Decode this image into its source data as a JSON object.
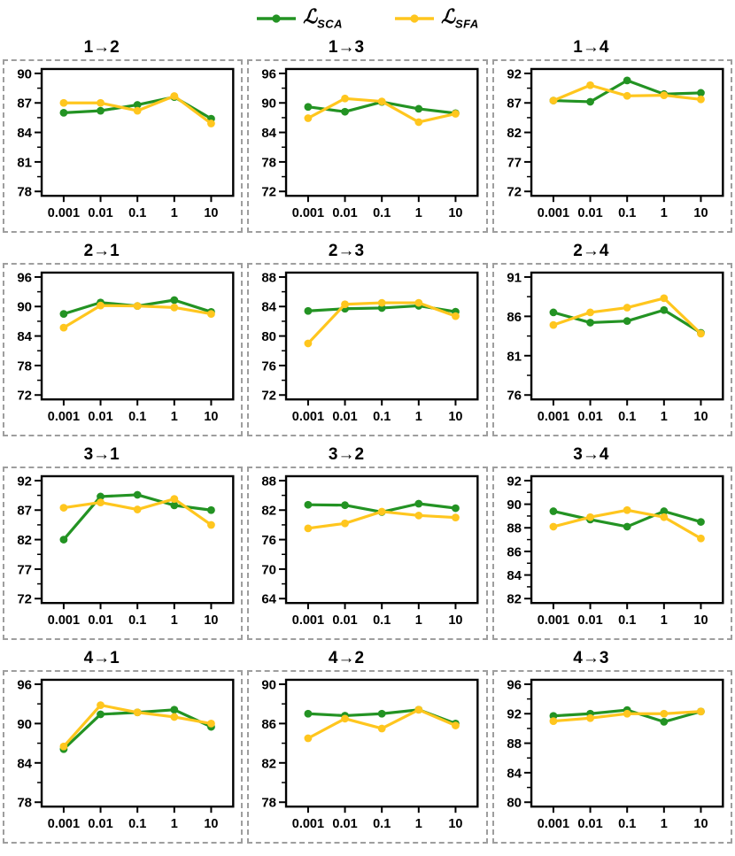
{
  "legend": {
    "series": [
      {
        "name": "L_SCA",
        "label": "ℒ",
        "subscript": "SCA",
        "color": "#239323"
      },
      {
        "name": "L_SFA",
        "label": "ℒ",
        "subscript": "SFA",
        "color": "#ffc61e"
      }
    ]
  },
  "chart_data": {
    "type": "line",
    "x_categories": [
      "0.001",
      "0.01",
      "0.1",
      "1",
      "10"
    ],
    "x_scale": "log",
    "grid": false,
    "legend_position": "top-center",
    "marker": "circle",
    "series_names": [
      "L_SCA",
      "L_SFA"
    ],
    "colors": {
      "L_SCA": "#239323",
      "L_SFA": "#ffc61e",
      "axis": "#000000",
      "panel_border": "#9e9e9e"
    },
    "charts": [
      {
        "title": "1→2",
        "yticks": [
          78,
          81,
          84,
          87,
          90
        ],
        "series": [
          {
            "name": "L_SCA",
            "values": [
              86.0,
              86.2,
              86.8,
              87.6,
              85.4
            ]
          },
          {
            "name": "L_SFA",
            "values": [
              87.0,
              87.0,
              86.2,
              87.7,
              84.9
            ]
          }
        ]
      },
      {
        "title": "1→3",
        "yticks": [
          72,
          78,
          84,
          90,
          96
        ],
        "series": [
          {
            "name": "L_SCA",
            "values": [
              89.2,
              88.2,
              90.2,
              88.8,
              87.9
            ]
          },
          {
            "name": "L_SFA",
            "values": [
              86.9,
              90.9,
              90.3,
              86.1,
              87.8
            ]
          }
        ]
      },
      {
        "title": "1→4",
        "yticks": [
          72,
          77,
          82,
          87,
          92
        ],
        "series": [
          {
            "name": "L_SCA",
            "values": [
              87.4,
              87.2,
              90.8,
              88.5,
              88.7
            ]
          },
          {
            "name": "L_SFA",
            "values": [
              87.4,
              90.0,
              88.2,
              88.3,
              87.6
            ]
          }
        ]
      },
      {
        "title": "2→1",
        "yticks": [
          72,
          78,
          84,
          90,
          96
        ],
        "series": [
          {
            "name": "L_SCA",
            "values": [
              88.5,
              90.8,
              90.1,
              91.3,
              88.9
            ]
          },
          {
            "name": "L_SFA",
            "values": [
              85.7,
              90.2,
              90.1,
              89.8,
              88.5
            ]
          }
        ]
      },
      {
        "title": "2→3",
        "yticks": [
          72,
          76,
          80,
          84,
          88
        ],
        "series": [
          {
            "name": "L_SCA",
            "values": [
              83.4,
              83.7,
              83.8,
              84.1,
              83.3
            ]
          },
          {
            "name": "L_SFA",
            "values": [
              79.0,
              84.3,
              84.5,
              84.5,
              82.7
            ]
          }
        ]
      },
      {
        "title": "2→4",
        "yticks": [
          76,
          81,
          86,
          91
        ],
        "series": [
          {
            "name": "L_SCA",
            "values": [
              86.5,
              85.2,
              85.4,
              86.8,
              83.9
            ]
          },
          {
            "name": "L_SFA",
            "values": [
              84.9,
              86.5,
              87.1,
              88.3,
              83.8
            ]
          }
        ]
      },
      {
        "title": "3→1",
        "yticks": [
          72,
          77,
          82,
          87,
          92
        ],
        "series": [
          {
            "name": "L_SCA",
            "values": [
              82.0,
              89.3,
              89.6,
              87.8,
              87.0
            ]
          },
          {
            "name": "L_SFA",
            "values": [
              87.4,
              88.3,
              87.1,
              88.9,
              84.5
            ]
          }
        ]
      },
      {
        "title": "3→2",
        "yticks": [
          64,
          70,
          76,
          82,
          88
        ],
        "series": [
          {
            "name": "L_SCA",
            "values": [
              83.1,
              83.0,
              81.6,
              83.3,
              82.4
            ]
          },
          {
            "name": "L_SFA",
            "values": [
              78.3,
              79.3,
              81.7,
              80.9,
              80.5
            ]
          }
        ]
      },
      {
        "title": "3→4",
        "yticks": [
          82,
          84,
          86,
          88,
          90,
          92
        ],
        "series": [
          {
            "name": "L_SCA",
            "values": [
              89.4,
              88.7,
              88.1,
              89.4,
              88.5
            ]
          },
          {
            "name": "L_SFA",
            "values": [
              88.1,
              88.9,
              89.5,
              88.9,
              87.1
            ]
          }
        ]
      },
      {
        "title": "4→1",
        "yticks": [
          78,
          84,
          90,
          96
        ],
        "series": [
          {
            "name": "L_SCA",
            "values": [
              86.1,
              91.4,
              91.7,
              92.1,
              89.5
            ]
          },
          {
            "name": "L_SFA",
            "values": [
              86.5,
              92.8,
              91.7,
              91.0,
              90.0
            ]
          }
        ]
      },
      {
        "title": "4→2",
        "yticks": [
          78,
          82,
          86,
          90
        ],
        "series": [
          {
            "name": "L_SCA",
            "values": [
              87.0,
              86.8,
              87.0,
              87.4,
              86.0
            ]
          },
          {
            "name": "L_SFA",
            "values": [
              84.5,
              86.5,
              85.5,
              87.4,
              85.8
            ]
          }
        ]
      },
      {
        "title": "4→3",
        "yticks": [
          80,
          84,
          88,
          92,
          96
        ],
        "series": [
          {
            "name": "L_SCA",
            "values": [
              91.7,
              92.0,
              92.5,
              90.9,
              92.3
            ]
          },
          {
            "name": "L_SFA",
            "values": [
              91.0,
              91.4,
              92.0,
              92.0,
              92.3
            ]
          }
        ]
      }
    ]
  }
}
